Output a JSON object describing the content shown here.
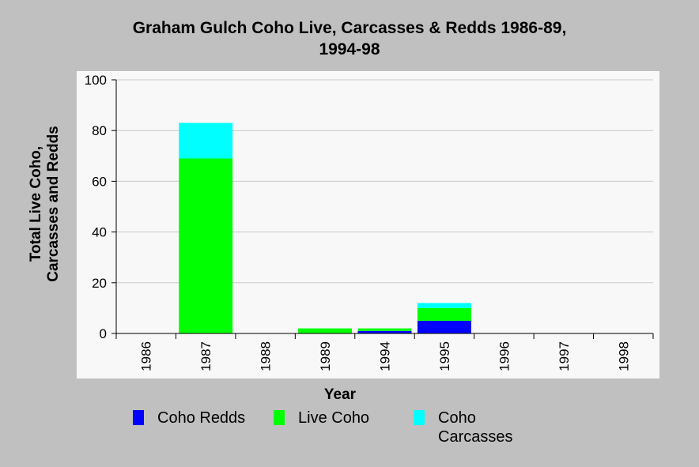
{
  "chart_data": {
    "type": "bar",
    "stacked": true,
    "title": [
      "Graham Gulch Coho Live, Carcasses & Redds 1986-89,",
      "1994-98"
    ],
    "xlabel": "Year",
    "ylabel": [
      "Total Live Coho,",
      "Carcasses and Redds"
    ],
    "ylim": [
      0,
      100
    ],
    "yticks": [
      "0",
      "20",
      "40",
      "60",
      "80",
      "100"
    ],
    "grid": true,
    "legend_position": "bottom",
    "categories": [
      "1986",
      "1987",
      "1988",
      "1989",
      "1994",
      "1995",
      "1996",
      "1997",
      "1998"
    ],
    "series": [
      {
        "name": "Coho Redds",
        "color": "#0000ff",
        "values": [
          0,
          0,
          0,
          0,
          1,
          5,
          0,
          0,
          0
        ]
      },
      {
        "name": "Live Coho",
        "color": "#00ff00",
        "values": [
          0,
          69,
          0,
          2,
          1,
          5,
          0,
          0,
          0
        ]
      },
      {
        "name": "Coho Carcasses",
        "color": "#00ffff",
        "values": [
          0,
          14,
          0,
          0,
          0,
          2,
          0,
          0,
          0
        ]
      }
    ]
  },
  "legend": [
    {
      "label": "Coho Redds",
      "color": "#0000ff"
    },
    {
      "label": "Live Coho",
      "color": "#00ff00"
    },
    {
      "label": "Coho",
      "label2": "Carcasses",
      "color": "#00ffff"
    }
  ]
}
